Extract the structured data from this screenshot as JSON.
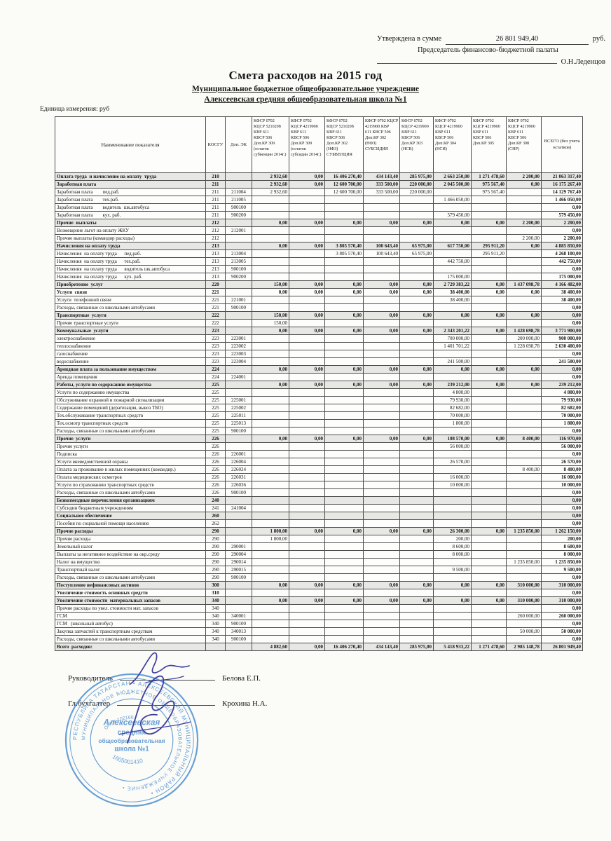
{
  "approval": {
    "approved_label": "Утверждена в сумме",
    "amount": "26 801 949,40",
    "currency": "руб.",
    "chairman_title": "Председатель финансово-бюджетной палаты",
    "chairman_name": "О.Н.Леденцов"
  },
  "title": "Смета расходов на 2015 год",
  "subtitle1": "Муниципальное бюджетное общеобразовательное учреждение",
  "subtitle2": "Алексеевская средняя общеобразовательная школа №1",
  "unit_label": "Единица измерения: руб",
  "table": {
    "headers": {
      "name": "Наименование показателя",
      "kosgu": "КОСГУ",
      "dop": "Доп. ЭК",
      "values": [
        "КФСР 0702\nКЦСР 5210208\nКВР 611\nКВСР 506\nДоп.КР 309\n(остаток\nсубвенции 2014г.)",
        "КФСР 0702\nКЦСР 4219900\nКВР 611\nКВСР 506\nДоп.КР 309\n(остаток\nсубсидии 2014г.)",
        "КФСР 0702\nКЦСР 5210208\nКВР 611\nКВСР 506\nДоп.КР 302\n(НФЗ)\nСУБВЕНЦИЯ",
        "КФСР 0702 КЦСР\n4219900    КВР\n611    КВСР 506\nДоп.КР 302\n(НФЗ)\nСУБСИДИЯ",
        "КФСР 0702\nКЦСР 4219900\nКВР 611\nКВСР 506\nДоп.КР 303\n(НСВ)",
        "КФСР 0702\nКЦСР 4219900\nКВР 611\nКВСР 506\nДоп.КР 304\n(НСИ)",
        "КФСР 0702\nКЦСР 4219900\nКВР 611\nКВСР 506\nДоп.КР 305",
        "КФСР 0702\nКЦСР 4219900\nКВР 611\nКВСР 506\nДоп.КР 308\n(СНР)"
      ],
      "total": "ВСЕГО  (без учета\nостатков)"
    },
    "rows": [
      {
        "n": "Оплата труда  и начисление на оплату  труда",
        "k": "210",
        "b": true,
        "s": true,
        "v": [
          "2 932,60",
          "0,00",
          "16 406 270,40",
          "434 143,40",
          "285 975,00",
          "2 663 250,00",
          "1 271 478,60",
          "2 200,00"
        ],
        "t": "21 063 317,40"
      },
      {
        "n": "Заработная плата",
        "k": "211",
        "b": true,
        "s": true,
        "v": [
          "2 932,60",
          "0,00",
          "12 600 700,00",
          "333 500,00",
          "220 000,00",
          "2 045 500,00",
          "975 567,40",
          "0,00"
        ],
        "t": "16 175 267,40"
      },
      {
        "n": "Заработная плата        пед.раб.",
        "k": "211",
        "d": "211004",
        "v": [
          "2 932,60",
          "",
          "12 600 700,00",
          "333 500,00",
          "220 000,00",
          "",
          "975 567,40",
          ""
        ],
        "t": "14 129 767,40"
      },
      {
        "n": "Заработная плата        тех.раб.",
        "k": "211",
        "d": "211005",
        "v": [
          "",
          "",
          "",
          "",
          "",
          "1 466 050,00",
          "",
          ""
        ],
        "t": "1 466 050,00"
      },
      {
        "n": "Заработная плата        водитель  шк.автобуса",
        "k": "211",
        "d": "900100",
        "t": "0,00"
      },
      {
        "n": "Заработная плата        кух. раб.",
        "k": "211",
        "d": "900200",
        "v": [
          "",
          "",
          "",
          "",
          "",
          "579 450,00",
          "",
          ""
        ],
        "t": "579 450,00"
      },
      {
        "n": "Прочие  выплаты",
        "k": "212",
        "b": true,
        "s": true,
        "v": [
          "0,00",
          "0,00",
          "0,00",
          "0,00",
          "0,00",
          "0,00",
          "0,00",
          "2 200,00"
        ],
        "t": "2 200,00"
      },
      {
        "n": "Возмещение льгот на оплату ЖКУ",
        "k": "212",
        "d": "212001",
        "t": "0,00"
      },
      {
        "n": "Прочие выплаты (командир расходы)",
        "k": "212",
        "v": [
          "",
          "",
          "",
          "",
          "",
          "",
          "",
          "2 200,00"
        ],
        "t": "2 200,00"
      },
      {
        "n": "Начисления на оплату труда",
        "k": "213",
        "b": true,
        "s": true,
        "v": [
          "0,00",
          "0,00",
          "3 805 570,40",
          "100 643,40",
          "65 975,00",
          "617 750,00",
          "295 911,20",
          "0,00"
        ],
        "t": "4 885 850,00"
      },
      {
        "n": "Начисления  на оплату труда      пед.раб.",
        "k": "213",
        "d": "213004",
        "v": [
          "",
          "",
          "3 805 570,40",
          "100 643,40",
          "65 975,00",
          "",
          "295 911,20",
          ""
        ],
        "t": "4 268 100,00"
      },
      {
        "n": "Начисления  на оплату труда      тех.раб.",
        "k": "213",
        "d": "213005",
        "v": [
          "",
          "",
          "",
          "",
          "",
          "442 750,00",
          "",
          ""
        ],
        "t": "442 750,00"
      },
      {
        "n": "Начисления  на оплату труда      водитель шк.автобуса",
        "k": "213",
        "d": "900100",
        "t": "0,00"
      },
      {
        "n": "Начисления  на оплату труда      кух. раб.",
        "k": "213",
        "d": "900200",
        "v": [
          "",
          "",
          "",
          "",
          "",
          "175 000,00",
          "",
          ""
        ],
        "t": "175 000,00"
      },
      {
        "n": "Приобретение  услуг",
        "k": "220",
        "b": true,
        "s": true,
        "v": [
          "150,00",
          "0,00",
          "0,00",
          "0,00",
          "0,00",
          "2 729 383,22",
          "0,00",
          "1 437 098,78"
        ],
        "t": "4 166 482,00"
      },
      {
        "n": "Услуги  связи",
        "k": "221",
        "b": true,
        "v": [
          "0,00",
          "0,00",
          "0,00",
          "0,00",
          "0,00",
          "38 400,00",
          "0,00",
          "0,00"
        ],
        "t": "38 400,00"
      },
      {
        "n": "Услуги  телефонной связи",
        "k": "221",
        "d": "221001",
        "v": [
          "",
          "",
          "",
          "",
          "",
          "38 400,00",
          "",
          ""
        ],
        "t": "38 400,00"
      },
      {
        "n": "Расходы, связанные со школьными автобусами",
        "k": "221",
        "d": "900100",
        "t": "0,00"
      },
      {
        "n": "Транспортные  услуги",
        "k": "222",
        "b": true,
        "s": true,
        "v": [
          "150,00",
          "0,00",
          "0,00",
          "0,00",
          "0,00",
          "0,00",
          "0,00",
          "0,00"
        ],
        "t": "0,00"
      },
      {
        "n": "Прочие транспортные услуги",
        "k": "222",
        "v": [
          "150,00",
          "",
          "",
          "",
          "",
          "",
          "",
          ""
        ],
        "t": "0,00"
      },
      {
        "n": "Коммунальные  услуги",
        "k": "223",
        "b": true,
        "s": true,
        "v": [
          "0,00",
          "0,00",
          "0,00",
          "0,00",
          "0,00",
          "2 343 201,22",
          "0,00",
          "1 428 698,78"
        ],
        "t": "3 771 900,00"
      },
      {
        "n": "электроснабжение",
        "k": "223",
        "d": "223001",
        "v": [
          "",
          "",
          "",
          "",
          "",
          "700 000,00",
          "",
          "200 000,00"
        ],
        "t": "900 000,00"
      },
      {
        "n": "теплоснабжение",
        "k": "223",
        "d": "223002",
        "v": [
          "",
          "",
          "",
          "",
          "",
          "1 401 701,22",
          "",
          "1 228 698,78"
        ],
        "t": "2 630 400,00"
      },
      {
        "n": "газоснабжение",
        "k": "223",
        "d": "223003",
        "t": "0,00"
      },
      {
        "n": "водоснабжение",
        "k": "223",
        "d": "223004",
        "v": [
          "",
          "",
          "",
          "",
          "",
          "241 500,00",
          "",
          ""
        ],
        "t": "241 500,00"
      },
      {
        "n": "Арендная плата за пользование имуществом",
        "k": "224",
        "b": true,
        "s": true,
        "v": [
          "0,00",
          "0,00",
          "0,00",
          "0,00",
          "0,00",
          "0,00",
          "0,00",
          "0,00"
        ],
        "t": "0,00"
      },
      {
        "n": "Аренда помещения",
        "k": "224",
        "d": "224001",
        "t": "0,00"
      },
      {
        "n": "Работы, услуги по содержанию имущества",
        "k": "225",
        "b": true,
        "s": true,
        "v": [
          "0,00",
          "0,00",
          "0,00",
          "0,00",
          "0,00",
          "239 212,00",
          "0,00",
          "0,00"
        ],
        "t": "239 212,00"
      },
      {
        "n": "Услуги по содержанию имущества",
        "k": "225",
        "v": [
          "",
          "",
          "",
          "",
          "",
          "4 800,00",
          "",
          ""
        ],
        "t": "4 800,00"
      },
      {
        "n": "Обслуживание охранной и пожарной сигнализации",
        "k": "225",
        "d": "225001",
        "v": [
          "",
          "",
          "",
          "",
          "",
          "79 930,00",
          "",
          ""
        ],
        "t": "79 930,00"
      },
      {
        "n": "Содержание помещений (дератизация, вывоз ТБО)",
        "k": "225",
        "d": "225002",
        "v": [
          "",
          "",
          "",
          "",
          "",
          "82 682,00",
          "",
          ""
        ],
        "t": "82 682,00"
      },
      {
        "n": "Тех.обслуживание транспортных средств",
        "k": "225",
        "d": "225011",
        "v": [
          "",
          "",
          "",
          "",
          "",
          "70 000,00",
          "",
          ""
        ],
        "t": "70 000,00"
      },
      {
        "n": "Тех.осмотр транспортных средств",
        "k": "225",
        "d": "225013",
        "v": [
          "",
          "",
          "",
          "",
          "",
          "1 800,00",
          "",
          ""
        ],
        "t": "1 800,00"
      },
      {
        "n": "Расходы, связанные со школьными автобусами",
        "k": "225",
        "d": "900100",
        "t": "0,00"
      },
      {
        "n": "Прочие  услуги",
        "k": "226",
        "b": true,
        "s": true,
        "v": [
          "0,00",
          "0,00",
          "0,00",
          "0,00",
          "0,00",
          "108 570,00",
          "0,00",
          "8 400,00"
        ],
        "t": "116 970,00"
      },
      {
        "n": "Прочие услуги",
        "k": "226",
        "v": [
          "",
          "",
          "",
          "",
          "",
          "56 000,00",
          "",
          ""
        ],
        "t": "56 000,00"
      },
      {
        "n": "Подписка",
        "k": "226",
        "d": "226001",
        "t": "0,00"
      },
      {
        "n": "Услуги вневедомственной охраны",
        "k": "226",
        "d": "226004",
        "v": [
          "",
          "",
          "",
          "",
          "",
          "26 570,00",
          "",
          ""
        ],
        "t": "26 570,00"
      },
      {
        "n": "Оплата за проживание в жилых помещениях (командир.)",
        "k": "226",
        "d": "226024",
        "v": [
          "",
          "",
          "",
          "",
          "",
          "",
          "",
          "8 400,00"
        ],
        "t": "8 400,00"
      },
      {
        "n": "Оплата медицинских осмотров",
        "k": "226",
        "d": "226031",
        "v": [
          "",
          "",
          "",
          "",
          "",
          "16 000,00",
          "",
          ""
        ],
        "t": "16 000,00"
      },
      {
        "n": "Услуги по страхованию транспортных средств",
        "k": "226",
        "d": "226036",
        "v": [
          "",
          "",
          "",
          "",
          "",
          "10 000,00",
          "",
          ""
        ],
        "t": "10 000,00"
      },
      {
        "n": "Расходы, связанные со школьными автобусами",
        "k": "226",
        "d": "900100",
        "t": "0,00"
      },
      {
        "n": "Безвозмездные перечисления организациям",
        "k": "240",
        "b": true,
        "s": true,
        "t": "0,00"
      },
      {
        "n": "Субсидии бюджетным учреждениям",
        "k": "241",
        "d": "241004",
        "t": "0,00"
      },
      {
        "n": "Социальное обеспечение",
        "k": "260",
        "b": true,
        "s": true,
        "t": "0,00"
      },
      {
        "n": "Пособия по социальной помощи населению",
        "k": "262",
        "t": "0,00"
      },
      {
        "n": "Прочие расходы",
        "k": "290",
        "b": true,
        "s": true,
        "v": [
          "1 800,00",
          "0,00",
          "0,00",
          "0,00",
          "0,00",
          "26 300,00",
          "0,00",
          "1 235 850,00"
        ],
        "t": "1 262 150,00"
      },
      {
        "n": "Прочие расходы",
        "k": "290",
        "v": [
          "1 800,00",
          "",
          "",
          "",
          "",
          "200,00",
          "",
          ""
        ],
        "t": "200,00"
      },
      {
        "n": "Земельный налог",
        "k": "290",
        "d": "290001",
        "v": [
          "",
          "",
          "",
          "",
          "",
          "8 600,00",
          "",
          ""
        ],
        "t": "8 600,00"
      },
      {
        "n": "Выплаты за негативное воздействие на окр.среду",
        "k": "290",
        "d": "290004",
        "v": [
          "",
          "",
          "",
          "",
          "",
          "8 000,00",
          "",
          ""
        ],
        "t": "8 000,00"
      },
      {
        "n": "Налог на имущество",
        "k": "290",
        "d": "290014",
        "v": [
          "",
          "",
          "",
          "",
          "",
          "",
          "",
          "1 235 850,00"
        ],
        "t": "1 235 850,00"
      },
      {
        "n": "Транспортный налог",
        "k": "290",
        "d": "290015",
        "v": [
          "",
          "",
          "",
          "",
          "",
          "9 500,00",
          "",
          ""
        ],
        "t": "9 500,00"
      },
      {
        "n": "Расходы, связанные со школьными автобусами",
        "k": "290",
        "d": "900100",
        "t": "0,00"
      },
      {
        "n": "Поступление нефинансовых активов",
        "k": "300",
        "b": true,
        "s": true,
        "v": [
          "0,00",
          "0,00",
          "0,00",
          "0,00",
          "0,00",
          "0,00",
          "0,00",
          "310 000,00"
        ],
        "t": "310 000,00"
      },
      {
        "n": "Увеличение стоимость основных средств",
        "k": "310",
        "b": true,
        "t": "0,00"
      },
      {
        "n": "Увеличение стоимости  материальных запасов",
        "k": "340",
        "b": true,
        "s": true,
        "v": [
          "0,00",
          "0,00",
          "0,00",
          "0,00",
          "0,00",
          "0,00",
          "0,00",
          "310 000,00"
        ],
        "t": "310 000,00"
      },
      {
        "n": "Прочие расходы по увел. стоимости мат. запасов",
        "k": "340",
        "t": "0,00"
      },
      {
        "n": "ГСМ",
        "k": "340",
        "d": "340001",
        "v": [
          "",
          "",
          "",
          "",
          "",
          "",
          "",
          "260 000,00"
        ],
        "t": "260 000,00"
      },
      {
        "n": "ГСМ   (школьный автобус)",
        "k": "340",
        "d": "900100",
        "t": "0,00"
      },
      {
        "n": "Закупка запчастей к транспортным средствам",
        "k": "340",
        "d": "340013",
        "v": [
          "",
          "",
          "",
          "",
          "",
          "",
          "",
          "50 000,00"
        ],
        "t": "50 000,00"
      },
      {
        "n": "Расходы, связанные со школьными автобусами",
        "k": "340",
        "d": "900100",
        "t": "0,00"
      },
      {
        "n": "Всего  расходов:",
        "k": "",
        "b": true,
        "s": true,
        "v": [
          "4 882,60",
          "0,00",
          "16 406 270,40",
          "434 143,40",
          "285 975,00",
          "5 418 933,22",
          "1 271 478,60",
          "2 985 148,78"
        ],
        "t": "26 801 949,40"
      }
    ]
  },
  "footer": {
    "head_label": "Руководитель",
    "head_name": "Белова Е.П.",
    "accountant_label": "Гл.бухгалтер",
    "accountant_name": "Крохина Н.А."
  },
  "stamp": {
    "center_line1": "Алексеевская",
    "center_line2": "средняя",
    "center_line3": "общеобразовательная",
    "center_line4": "школа №1",
    "number": "1605001410",
    "ogrn": "ОГРН 102160",
    "ring_outer": "РЕСПУБЛИКА ТАТАРСТАН • АЛЕКСЕЕВСКИЙ МУНИЦИПАЛЬНЫЙ РАЙОН • ",
    "ring_inner": "МУНИЦИПАЛЬНОЕ БЮДЖЕТНОЕ ОБЩЕОБРАЗОВАТЕЛЬНОЕ УЧРЕЖДЕНИЕ • "
  },
  "colors": {
    "stamp_blue": "#3d85cc",
    "ink_blue": "#3c3f9e",
    "row_shade": "#e7e7e4"
  }
}
